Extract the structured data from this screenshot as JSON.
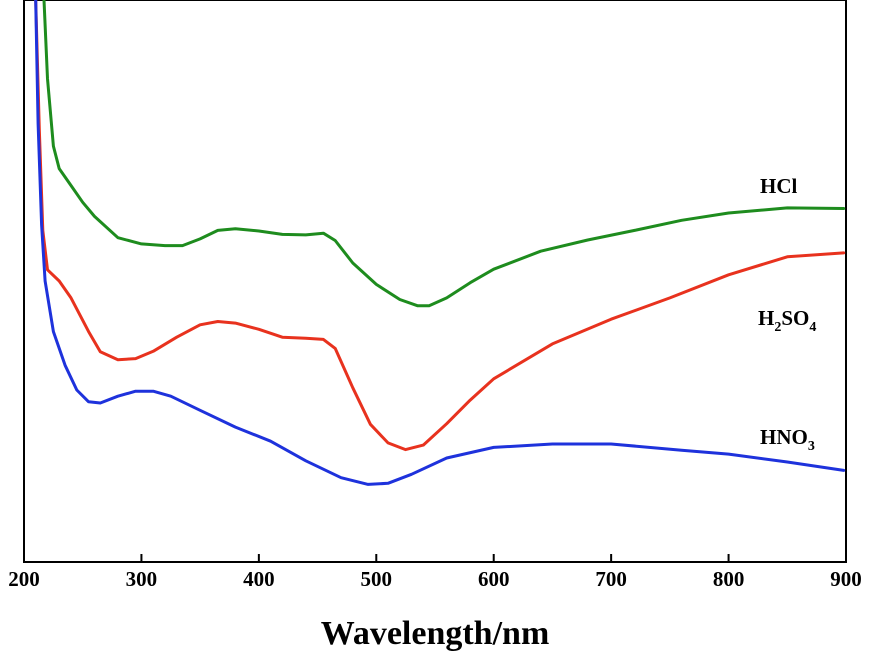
{
  "chart_data": {
    "type": "line",
    "title": "",
    "xlabel": "Wavelength/nm",
    "ylabel": "",
    "xlim": [
      200,
      900
    ],
    "ylim": [
      0,
      1
    ],
    "x_ticks": [
      200,
      300,
      400,
      500,
      600,
      700,
      800,
      900
    ],
    "x_tick_labels": [
      "200",
      "300",
      "400",
      "500",
      "600",
      "700",
      "800",
      "900"
    ],
    "grid": false,
    "y_tick_labels_shown": false,
    "series": [
      {
        "name": "HCl",
        "label_main": "HCl",
        "label_sub": "",
        "label_tail": "",
        "color": "#1e8c1e",
        "points": [
          [
            217,
            1.02
          ],
          [
            220,
            0.86
          ],
          [
            225,
            0.74
          ],
          [
            230,
            0.7
          ],
          [
            240,
            0.67
          ],
          [
            250,
            0.64
          ],
          [
            260,
            0.615
          ],
          [
            280,
            0.577
          ],
          [
            300,
            0.566
          ],
          [
            320,
            0.563
          ],
          [
            335,
            0.563
          ],
          [
            350,
            0.575
          ],
          [
            365,
            0.59
          ],
          [
            380,
            0.593
          ],
          [
            400,
            0.589
          ],
          [
            420,
            0.583
          ],
          [
            440,
            0.582
          ],
          [
            455,
            0.585
          ],
          [
            465,
            0.572
          ],
          [
            480,
            0.532
          ],
          [
            500,
            0.494
          ],
          [
            520,
            0.467
          ],
          [
            535,
            0.456
          ],
          [
            545,
            0.456
          ],
          [
            560,
            0.47
          ],
          [
            580,
            0.497
          ],
          [
            600,
            0.521
          ],
          [
            640,
            0.553
          ],
          [
            680,
            0.573
          ],
          [
            720,
            0.59
          ],
          [
            760,
            0.608
          ],
          [
            800,
            0.621
          ],
          [
            850,
            0.63
          ],
          [
            898,
            0.629
          ]
        ]
      },
      {
        "name": "H2SO4",
        "label_main": "H",
        "label_sub": "2",
        "label_mid": "SO",
        "label_sub2": "4",
        "color": "#e8321e",
        "points": [
          [
            210,
            1.02
          ],
          [
            213,
            0.77
          ],
          [
            216,
            0.59
          ],
          [
            220,
            0.52
          ],
          [
            230,
            0.5
          ],
          [
            240,
            0.47
          ],
          [
            255,
            0.41
          ],
          [
            265,
            0.374
          ],
          [
            280,
            0.36
          ],
          [
            295,
            0.362
          ],
          [
            310,
            0.375
          ],
          [
            330,
            0.4
          ],
          [
            350,
            0.422
          ],
          [
            365,
            0.428
          ],
          [
            380,
            0.425
          ],
          [
            400,
            0.414
          ],
          [
            420,
            0.4
          ],
          [
            440,
            0.398
          ],
          [
            455,
            0.396
          ],
          [
            465,
            0.38
          ],
          [
            480,
            0.31
          ],
          [
            495,
            0.245
          ],
          [
            510,
            0.212
          ],
          [
            525,
            0.2
          ],
          [
            540,
            0.208
          ],
          [
            560,
            0.246
          ],
          [
            580,
            0.288
          ],
          [
            600,
            0.326
          ],
          [
            650,
            0.388
          ],
          [
            700,
            0.432
          ],
          [
            750,
            0.47
          ],
          [
            800,
            0.511
          ],
          [
            850,
            0.543
          ],
          [
            898,
            0.55
          ]
        ]
      },
      {
        "name": "HNO3",
        "label_main": "HNO",
        "label_sub": "3",
        "color": "#1e32dc",
        "points": [
          [
            210,
            1.02
          ],
          [
            212,
            0.78
          ],
          [
            215,
            0.6
          ],
          [
            218,
            0.5
          ],
          [
            225,
            0.41
          ],
          [
            235,
            0.35
          ],
          [
            245,
            0.306
          ],
          [
            255,
            0.285
          ],
          [
            265,
            0.283
          ],
          [
            280,
            0.295
          ],
          [
            295,
            0.304
          ],
          [
            310,
            0.304
          ],
          [
            325,
            0.295
          ],
          [
            350,
            0.27
          ],
          [
            380,
            0.24
          ],
          [
            410,
            0.215
          ],
          [
            440,
            0.18
          ],
          [
            470,
            0.15
          ],
          [
            493,
            0.138
          ],
          [
            510,
            0.14
          ],
          [
            530,
            0.156
          ],
          [
            560,
            0.185
          ],
          [
            600,
            0.204
          ],
          [
            650,
            0.21
          ],
          [
            700,
            0.21
          ],
          [
            760,
            0.199
          ],
          [
            800,
            0.192
          ],
          [
            850,
            0.178
          ],
          [
            898,
            0.163
          ]
        ]
      }
    ]
  }
}
